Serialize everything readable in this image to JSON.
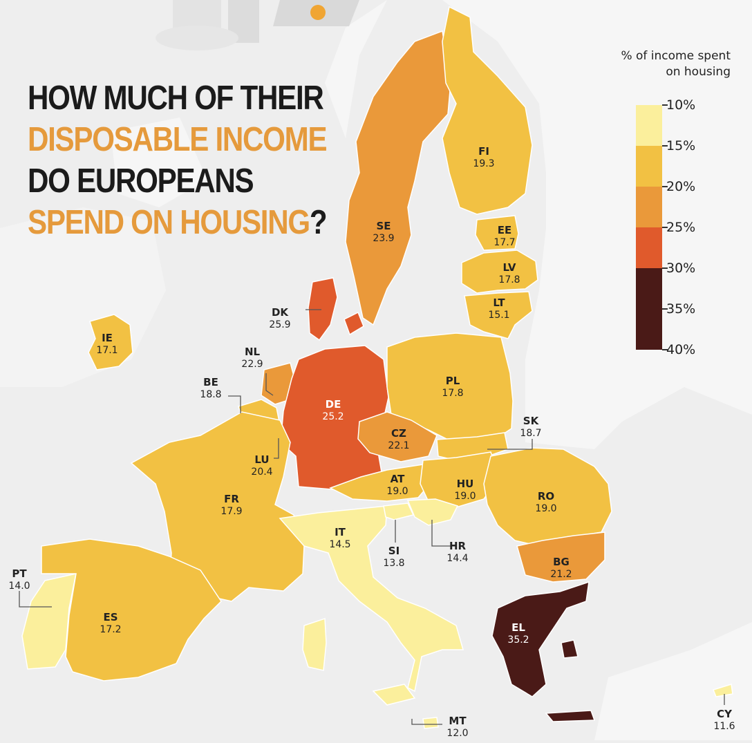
{
  "title_lines": [
    {
      "text": "HOW MUCH OF THEIR",
      "tone": "dark"
    },
    {
      "text": "DISPOSABLE INCOME",
      "tone": "orange"
    },
    {
      "text": "DO EUROPEANS",
      "tone": "dark"
    },
    {
      "text": "SPEND ON HOUSING",
      "tone": "orange",
      "suffix": "?"
    }
  ],
  "legend": {
    "title_line1": "% of income spent",
    "title_line2": "on housing",
    "ticks": [
      "10%",
      "15%",
      "20%",
      "25%",
      "30%",
      "35%",
      "40%"
    ],
    "bins": [
      {
        "from": 10,
        "to": 15,
        "color": "#fbef9c"
      },
      {
        "from": 15,
        "to": 20,
        "color": "#f2c143"
      },
      {
        "from": 20,
        "to": 25,
        "color": "#ea993a"
      },
      {
        "from": 25,
        "to": 30,
        "color": "#e05a2c"
      },
      {
        "from": 30,
        "to": 35,
        "color": "#4a1a17"
      },
      {
        "from": 35,
        "to": 40,
        "color": "#4a1a17"
      }
    ]
  },
  "colors": {
    "background": "#eeeeee",
    "land_non_eu": "#f7f7f7",
    "country_border": "#ffffff",
    "title_dark": "#1b1b1b",
    "title_orange": "#e59a3c",
    "label_dark": "#222222",
    "label_light": "#ffffff"
  },
  "countries": [
    {
      "code": "SE",
      "value": 23.9,
      "label": "23.9"
    },
    {
      "code": "FI",
      "value": 19.3,
      "label": "19.3"
    },
    {
      "code": "EE",
      "value": 17.7,
      "label": "17.7"
    },
    {
      "code": "LV",
      "value": 17.8,
      "label": "17.8"
    },
    {
      "code": "LT",
      "value": 15.1,
      "label": "15.1"
    },
    {
      "code": "DK",
      "value": 25.9,
      "label": "25.9"
    },
    {
      "code": "IE",
      "value": 17.1,
      "label": "17.1"
    },
    {
      "code": "NL",
      "value": 22.9,
      "label": "22.9"
    },
    {
      "code": "BE",
      "value": 18.8,
      "label": "18.8"
    },
    {
      "code": "DE",
      "value": 25.2,
      "label": "25.2"
    },
    {
      "code": "PL",
      "value": 17.8,
      "label": "17.8"
    },
    {
      "code": "SK",
      "value": 18.7,
      "label": "18.7"
    },
    {
      "code": "CZ",
      "value": 22.1,
      "label": "22.1"
    },
    {
      "code": "LU",
      "value": 20.4,
      "label": "20.4"
    },
    {
      "code": "AT",
      "value": 19.0,
      "label": "19.0"
    },
    {
      "code": "HU",
      "value": 19.0,
      "label": "19.0"
    },
    {
      "code": "RO",
      "value": 19.0,
      "label": "19.0"
    },
    {
      "code": "FR",
      "value": 17.9,
      "label": "17.9"
    },
    {
      "code": "IT",
      "value": 14.5,
      "label": "14.5"
    },
    {
      "code": "SI",
      "value": 13.8,
      "label": "13.8"
    },
    {
      "code": "HR",
      "value": 14.4,
      "label": "14.4"
    },
    {
      "code": "BG",
      "value": 21.2,
      "label": "21.2"
    },
    {
      "code": "PT",
      "value": 14.0,
      "label": "14.0"
    },
    {
      "code": "ES",
      "value": 17.2,
      "label": "17.2"
    },
    {
      "code": "EL",
      "value": 35.2,
      "label": "35.2"
    },
    {
      "code": "MT",
      "value": 12.0,
      "label": "12.0"
    },
    {
      "code": "CY",
      "value": 11.6,
      "label": "11.6"
    }
  ]
}
